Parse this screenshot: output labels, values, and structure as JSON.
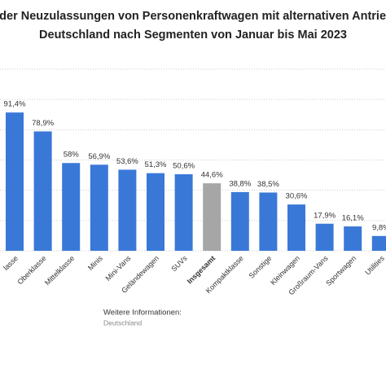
{
  "chart_data": {
    "type": "bar",
    "title": [
      "teil der Neuzulassungen von Personenkraftwagen mit alternativen Antrieben",
      "Deutschland nach Segmenten von Januar bis Mai 2023"
    ],
    "categories": [
      "lasse",
      "Oberklasse",
      "Mittelklasse",
      "Minis",
      "Mini-Vans",
      "Geländewagen",
      "SUVs",
      "Insgesamt",
      "Kompaktklasse",
      "Sonstige",
      "Kleinwagen",
      "Großraum-Vans",
      "Sportwagen",
      "Utilities"
    ],
    "values": [
      91.4,
      78.9,
      58,
      56.9,
      53.6,
      51.3,
      50.6,
      44.6,
      38.8,
      38.5,
      30.6,
      17.9,
      16.1,
      9.8
    ],
    "value_labels": [
      "91,4%",
      "78,9%",
      "58%",
      "56,9%",
      "53,6%",
      "51,3%",
      "50,6%",
      "44,6%",
      "38,8%",
      "38,5%",
      "30,6%",
      "17,9%",
      "16,1%",
      "9,8%"
    ],
    "colors": [
      "#3a78d8",
      "#3a78d8",
      "#3a78d8",
      "#3a78d8",
      "#3a78d8",
      "#3a78d8",
      "#3a78d8",
      "#a6a6a6",
      "#3a78d8",
      "#3a78d8",
      "#3a78d8",
      "#3a78d8",
      "#3a78d8",
      "#3a78d8"
    ],
    "highlight_category": "Insgesamt",
    "ylim": [
      0,
      120
    ],
    "yticks": [
      0,
      20,
      40,
      60,
      80,
      100,
      120
    ],
    "grid": true,
    "footer": {
      "heading": "Weitere Informationen:",
      "text": "Deutschland"
    }
  }
}
